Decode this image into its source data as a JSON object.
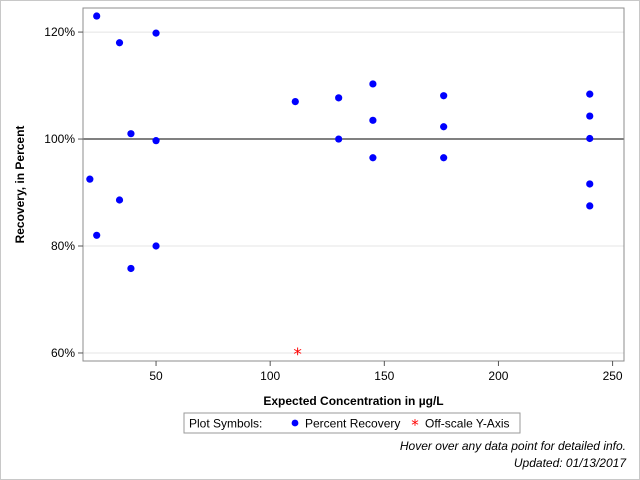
{
  "chart_data": {
    "type": "scatter",
    "title": "",
    "xlabel": "Expected Concentration in µg/L",
    "ylabel": "Recovery, in Percent",
    "xlim": [
      18,
      255
    ],
    "ylim": [
      58.5,
      124.5
    ],
    "xticks": [
      50,
      100,
      150,
      200,
      250
    ],
    "yticks": [
      60,
      80,
      100,
      120
    ],
    "ytick_format": "{v}%",
    "reference_line_y": 100,
    "grid": "horizontal",
    "series": [
      {
        "name": "Percent Recovery",
        "color": "#0000ff",
        "marker": "circle",
        "points": [
          [
            24,
            123
          ],
          [
            34,
            118
          ],
          [
            50,
            119.8
          ],
          [
            39,
            101
          ],
          [
            50,
            99.7
          ],
          [
            21,
            92.5
          ],
          [
            34,
            88.6
          ],
          [
            24,
            82
          ],
          [
            50,
            80
          ],
          [
            39,
            75.8
          ],
          [
            111,
            107
          ],
          [
            130,
            107.7
          ],
          [
            145,
            110.3
          ],
          [
            176,
            108.1
          ],
          [
            130,
            100
          ],
          [
            145,
            103.5
          ],
          [
            176,
            102.3
          ],
          [
            145,
            96.5
          ],
          [
            176,
            96.5
          ],
          [
            240,
            108.4
          ],
          [
            240,
            104.3
          ],
          [
            240,
            100.1
          ],
          [
            240,
            91.6
          ],
          [
            240,
            87.5
          ]
        ]
      },
      {
        "name": "Off-scale Y-Axis",
        "color": "#ff0000",
        "marker": "asterisk",
        "points": [
          [
            112,
            60
          ]
        ]
      }
    ]
  },
  "legend": {
    "title": "Plot Symbols:",
    "items": [
      "Percent Recovery",
      "Off-scale Y-Axis"
    ]
  },
  "footnotes": {
    "hover": "Hover over any data point for detailed info.",
    "updated": "Updated: 01/13/2017"
  }
}
